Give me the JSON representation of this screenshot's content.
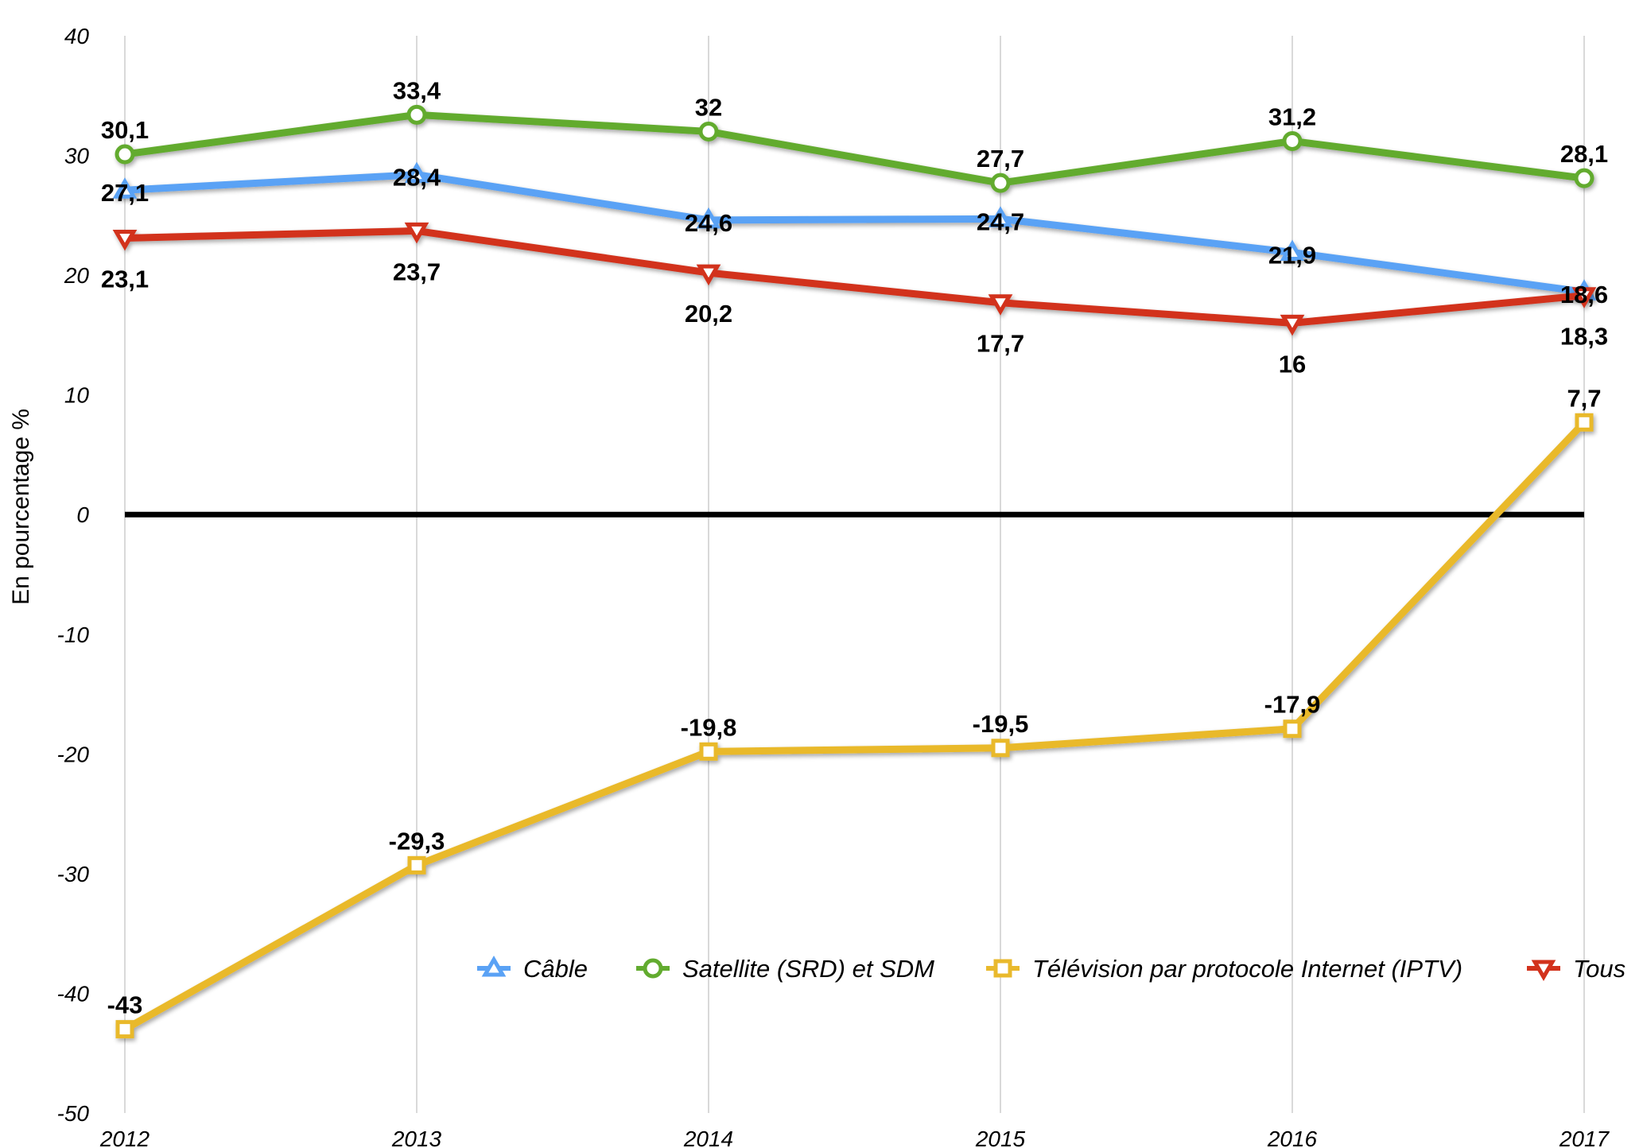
{
  "chart_data": {
    "type": "line",
    "title": "",
    "xlabel": "",
    "ylabel": "En pourcentage %",
    "x": [
      "2012",
      "2013",
      "2014",
      "2015",
      "2016",
      "2017"
    ],
    "ylim": [
      -50,
      40
    ],
    "yticks": [
      40,
      30,
      20,
      10,
      0,
      -10,
      -20,
      -30,
      -40,
      -50
    ],
    "grid": "vertical",
    "legend_position": "bottom-right",
    "series": [
      {
        "name": "Câble",
        "color": "#5aa2f5",
        "marker": "triangle-up",
        "values": [
          27.1,
          28.4,
          24.6,
          24.7,
          21.9,
          18.6
        ],
        "labels": [
          "27,1",
          "28,4",
          "24,6",
          "24,7",
          "21,9",
          "18,6"
        ]
      },
      {
        "name": "Satellite (SRD) et SDM",
        "color": "#62ab2f",
        "marker": "circle",
        "values": [
          30.1,
          33.4,
          32,
          27.7,
          31.2,
          28.1
        ],
        "labels": [
          "30,1",
          "33,4",
          "32",
          "27,7",
          "31,2",
          "28,1"
        ]
      },
      {
        "name": "Télévision par protocole Internet (IPTV)",
        "color": "#e9b92c",
        "marker": "square",
        "values": [
          -43,
          -29.3,
          -19.8,
          -19.5,
          -17.9,
          7.7
        ],
        "labels": [
          "-43",
          "-29,3",
          "-19,8",
          "-19,5",
          "-17,9",
          "7,7"
        ]
      },
      {
        "name": "Tous",
        "color": "#d2321c",
        "marker": "triangle-down",
        "values": [
          23.1,
          23.7,
          20.2,
          17.7,
          16,
          18.3
        ],
        "labels": [
          "23,1",
          "23,7",
          "20,2",
          "17,7",
          "16",
          "18,3"
        ]
      }
    ]
  }
}
